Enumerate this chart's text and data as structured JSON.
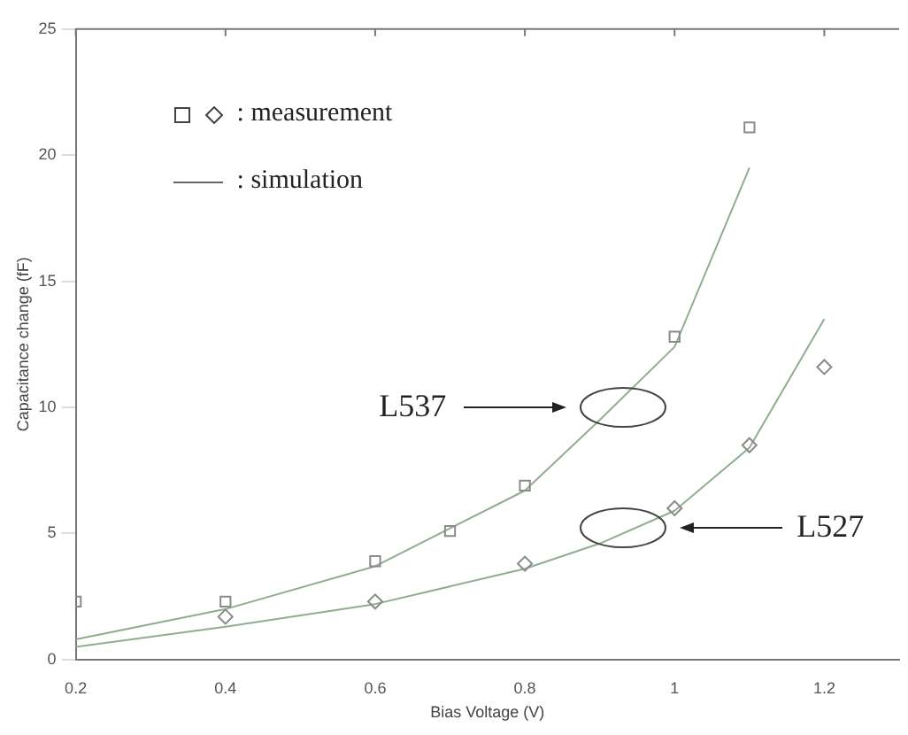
{
  "chart_data": {
    "type": "scatter",
    "xlabel": "Bias Voltage (V)",
    "ylabel": "Capacitance change (fF)",
    "xlim": [
      0.2,
      1.3
    ],
    "xticks": [
      {
        "value": 0.2,
        "label": "0.2"
      },
      {
        "value": 0.4,
        "label": "0.4"
      },
      {
        "value": 0.6,
        "label": "0.6"
      },
      {
        "value": 0.8,
        "label": "0.8"
      },
      1,
      {
        "value": 1.2,
        "label": "1.2"
      }
    ],
    "ylim": [
      0,
      25
    ],
    "yticks": [
      0,
      5,
      10,
      15,
      20,
      25
    ],
    "grid": false,
    "legend": false,
    "series": [
      {
        "marker": "square",
        "color": "#8a8a8a",
        "x": [
          0.2,
          0.4,
          0.6,
          0.7,
          0.8,
          1.0,
          1.1
        ],
        "values": [
          2.3,
          2.3,
          3.9,
          5.1,
          6.9,
          12.8,
          21.1
        ]
      },
      {
        "marker": "diamond",
        "color": "#8a8a8a",
        "x": [
          0.4,
          0.6,
          0.8,
          1.0,
          1.1,
          1.2
        ],
        "values": [
          1.7,
          2.3,
          3.8,
          6.0,
          8.5,
          11.6
        ]
      },
      {
        "type": "line",
        "marker": "none",
        "color": "#8fae8f",
        "x": [
          0.2,
          0.4,
          0.6,
          0.8,
          0.9,
          1.0,
          1.1
        ],
        "values": [
          0.8,
          2.0,
          3.7,
          6.7,
          9.5,
          12.4,
          19.5
        ]
      },
      {
        "type": "line",
        "marker": "none",
        "color": "#8fae8f",
        "x": [
          0.2,
          0.4,
          0.6,
          0.8,
          0.9,
          1.0,
          1.1,
          1.2
        ],
        "values": [
          0.5,
          1.3,
          2.2,
          3.6,
          4.6,
          5.9,
          8.4,
          13.5
        ]
      }
    ],
    "annotations": [
      ": measurement",
      ": simulation",
      "L537",
      "L527"
    ]
  }
}
